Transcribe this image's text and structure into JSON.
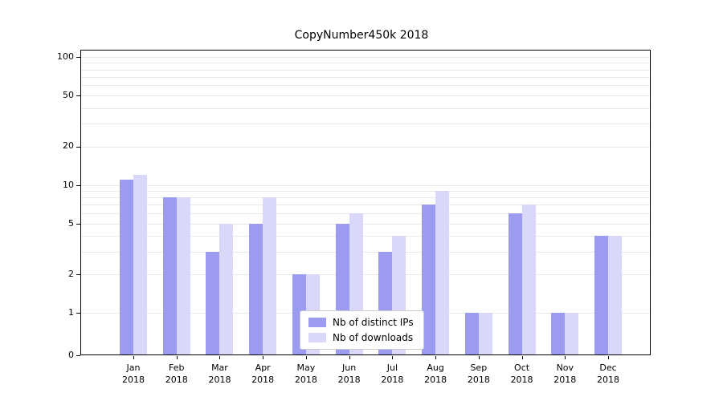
{
  "chart_data": {
    "type": "bar",
    "title": "CopyNumber450k 2018",
    "categories": [
      "Jan 2018",
      "Feb 2018",
      "Mar 2018",
      "Apr 2018",
      "May 2018",
      "Jun 2018",
      "Jul 2018",
      "Aug 2018",
      "Sep 2018",
      "Oct 2018",
      "Nov 2018",
      "Dec 2018"
    ],
    "series": [
      {
        "name": "Nb of distinct IPs",
        "color": "#9b9bef",
        "values": [
          11,
          8,
          3,
          5,
          2,
          5,
          3,
          7,
          1,
          6,
          1,
          4
        ]
      },
      {
        "name": "Nb of downloads",
        "color": "#d9d8f8",
        "values": [
          12,
          8,
          5,
          8,
          2,
          6,
          4,
          9,
          1,
          7,
          1,
          4
        ]
      }
    ],
    "yscale": "symlog",
    "yticks": [
      0,
      1,
      2,
      5,
      10,
      20,
      50,
      100
    ],
    "minor_gridlines": [
      1,
      2,
      3,
      4,
      5,
      6,
      7,
      8,
      9,
      10,
      20,
      30,
      40,
      50,
      60,
      70,
      80,
      90,
      100
    ],
    "ylim": [
      0,
      100
    ],
    "grid": true,
    "legend_position": "bottom-center"
  }
}
